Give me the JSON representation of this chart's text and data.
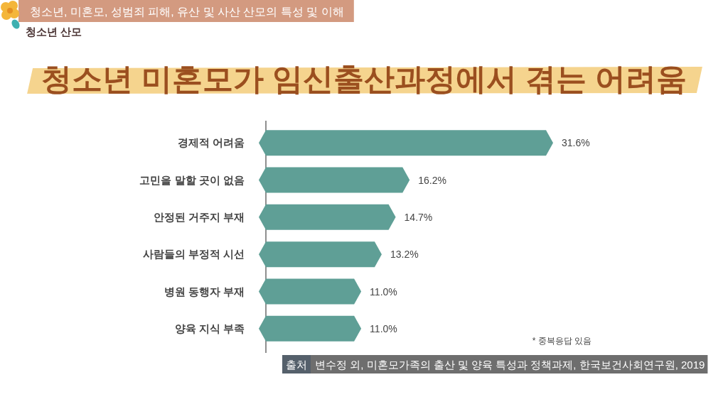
{
  "chart_data": {
    "type": "bar",
    "orientation": "horizontal",
    "title": "청소년 미혼모가 임신출산과정에서 겪는 어려움",
    "categories": [
      "경제적 어려움",
      "고민을 말할 곳이 없음",
      "안정된 거주지 부재",
      "사람들의 부정적 시선",
      "병원 동행자 부재",
      "양육 지식 부족"
    ],
    "values": [
      31.6,
      16.2,
      14.7,
      13.2,
      11.0,
      11.0
    ],
    "value_labels": [
      "31.6%",
      "16.2%",
      "14.7%",
      "13.2%",
      "11.0%",
      "11.0%"
    ],
    "color": "#5f9f96",
    "annotations": [
      "청소년, 미혼모, 성범죄 피해, 유산 및 사산 산모의 특성 및 이해",
      "청소년 산모",
      "* 중복응답 있음",
      "출처",
      "변수정 외, 미혼모가족의 출산 및 양육 특성과 정책과제, 한국보건사회연구원, 2019"
    ]
  }
}
